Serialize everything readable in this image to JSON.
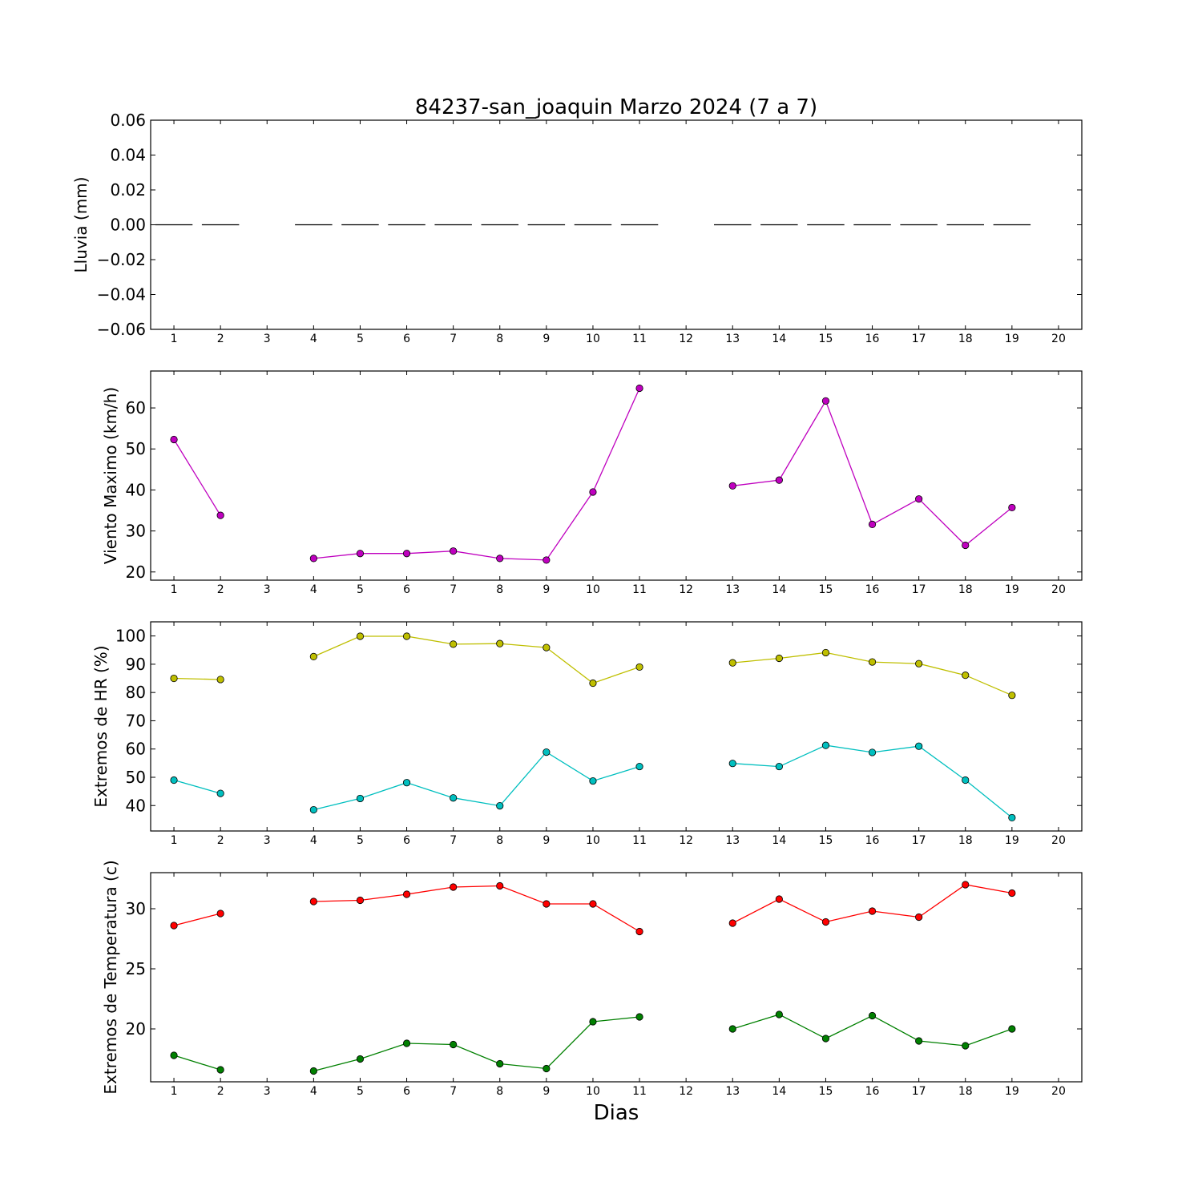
{
  "figure_title": "84237-san_joaquin Marzo 2024  (7 a 7)",
  "chart_data": [
    {
      "type": "bar",
      "ylabel": "Lluvia (mm)",
      "xlabel": "",
      "xlim": [
        0.5,
        20.5
      ],
      "ylim": [
        -0.06,
        0.06
      ],
      "xticks": [
        1,
        2,
        3,
        4,
        5,
        6,
        7,
        8,
        9,
        10,
        11,
        12,
        13,
        14,
        15,
        16,
        17,
        18,
        19,
        20
      ],
      "yticks": [
        -0.06,
        -0.04,
        -0.02,
        0.0,
        0.02,
        0.04,
        0.06
      ],
      "ytick_labels": [
        "−0.06",
        "−0.04",
        "−0.02",
        "0.00",
        "0.02",
        "0.04",
        "0.06"
      ],
      "series": [
        {
          "color": "#000000",
          "x": [
            1,
            2,
            4,
            5,
            6,
            7,
            8,
            9,
            10,
            11,
            13,
            14,
            15,
            16,
            17,
            18,
            19
          ],
          "values": [
            0,
            0,
            0,
            0,
            0,
            0,
            0,
            0,
            0,
            0,
            0,
            0,
            0,
            0,
            0,
            0,
            0
          ]
        }
      ]
    },
    {
      "type": "line",
      "ylabel": "Viento Maximo (km/h)",
      "xlabel": "",
      "xlim": [
        0.5,
        20.5
      ],
      "ylim": [
        18,
        69
      ],
      "xticks": [
        1,
        2,
        3,
        4,
        5,
        6,
        7,
        8,
        9,
        10,
        11,
        12,
        13,
        14,
        15,
        16,
        17,
        18,
        19,
        20
      ],
      "yticks": [
        20,
        30,
        40,
        50,
        60
      ],
      "ytick_labels": [
        "20",
        "30",
        "40",
        "50",
        "60"
      ],
      "series": [
        {
          "color": "#bf00bf",
          "x": [
            1,
            2,
            3,
            4,
            5,
            6,
            7,
            8,
            9,
            10,
            11,
            12,
            13,
            14,
            15,
            16,
            17,
            18,
            19
          ],
          "values": [
            52.3,
            33.8,
            null,
            23.3,
            24.5,
            24.5,
            25.1,
            23.3,
            22.9,
            39.5,
            64.8,
            null,
            41.0,
            42.4,
            61.7,
            31.6,
            37.8,
            26.5,
            35.7
          ]
        }
      ]
    },
    {
      "type": "line",
      "ylabel": "Extremos de HR (%)",
      "xlabel": "",
      "xlim": [
        0.5,
        20.5
      ],
      "ylim": [
        31,
        105
      ],
      "xticks": [
        1,
        2,
        3,
        4,
        5,
        6,
        7,
        8,
        9,
        10,
        11,
        12,
        13,
        14,
        15,
        16,
        17,
        18,
        19,
        20
      ],
      "yticks": [
        40,
        50,
        60,
        70,
        80,
        90,
        100
      ],
      "ytick_labels": [
        "40",
        "50",
        "60",
        "70",
        "80",
        "90",
        "100"
      ],
      "series": [
        {
          "color": "#bfbf00",
          "x": [
            1,
            2,
            3,
            4,
            5,
            6,
            7,
            8,
            9,
            10,
            11,
            12,
            13,
            14,
            15,
            16,
            17,
            18,
            19
          ],
          "values": [
            85,
            84.6,
            null,
            92.7,
            99.9,
            99.9,
            97.1,
            97.3,
            95.9,
            83.3,
            89,
            null,
            90.5,
            92.1,
            94.1,
            90.8,
            90.2,
            86.1,
            79
          ]
        },
        {
          "color": "#00bfbf",
          "x": [
            1,
            2,
            3,
            4,
            5,
            6,
            7,
            8,
            9,
            10,
            11,
            12,
            13,
            14,
            15,
            16,
            17,
            18,
            19
          ],
          "values": [
            49,
            44.3,
            null,
            38.5,
            42.5,
            48.1,
            42.7,
            39.9,
            58.9,
            48.7,
            53.8,
            null,
            54.9,
            53.8,
            61.3,
            58.8,
            61,
            49,
            35.7
          ]
        }
      ]
    },
    {
      "type": "line",
      "ylabel": "Extremos de Temperatura (c)",
      "xlabel": "Dias",
      "xlim": [
        0.5,
        20.5
      ],
      "ylim": [
        15.6,
        33.0
      ],
      "xticks": [
        1,
        2,
        3,
        4,
        5,
        6,
        7,
        8,
        9,
        10,
        11,
        12,
        13,
        14,
        15,
        16,
        17,
        18,
        19,
        20
      ],
      "yticks": [
        20,
        25,
        30
      ],
      "ytick_labels": [
        "20",
        "25",
        "30"
      ],
      "series": [
        {
          "color": "#ff0000",
          "x": [
            1,
            2,
            3,
            4,
            5,
            6,
            7,
            8,
            9,
            10,
            11,
            12,
            13,
            14,
            15,
            16,
            17,
            18,
            19
          ],
          "values": [
            28.6,
            29.6,
            null,
            30.6,
            30.7,
            31.2,
            31.8,
            31.9,
            30.4,
            30.4,
            28.1,
            null,
            28.8,
            30.8,
            28.9,
            29.8,
            29.3,
            32,
            31.3
          ]
        },
        {
          "color": "#008000",
          "x": [
            1,
            2,
            3,
            4,
            5,
            6,
            7,
            8,
            9,
            10,
            11,
            12,
            13,
            14,
            15,
            16,
            17,
            18,
            19
          ],
          "values": [
            17.8,
            16.6,
            null,
            16.5,
            17.5,
            18.8,
            18.7,
            17.1,
            16.7,
            20.6,
            21,
            null,
            20,
            21.2,
            19.2,
            21.1,
            19,
            18.6,
            20
          ]
        }
      ]
    }
  ]
}
